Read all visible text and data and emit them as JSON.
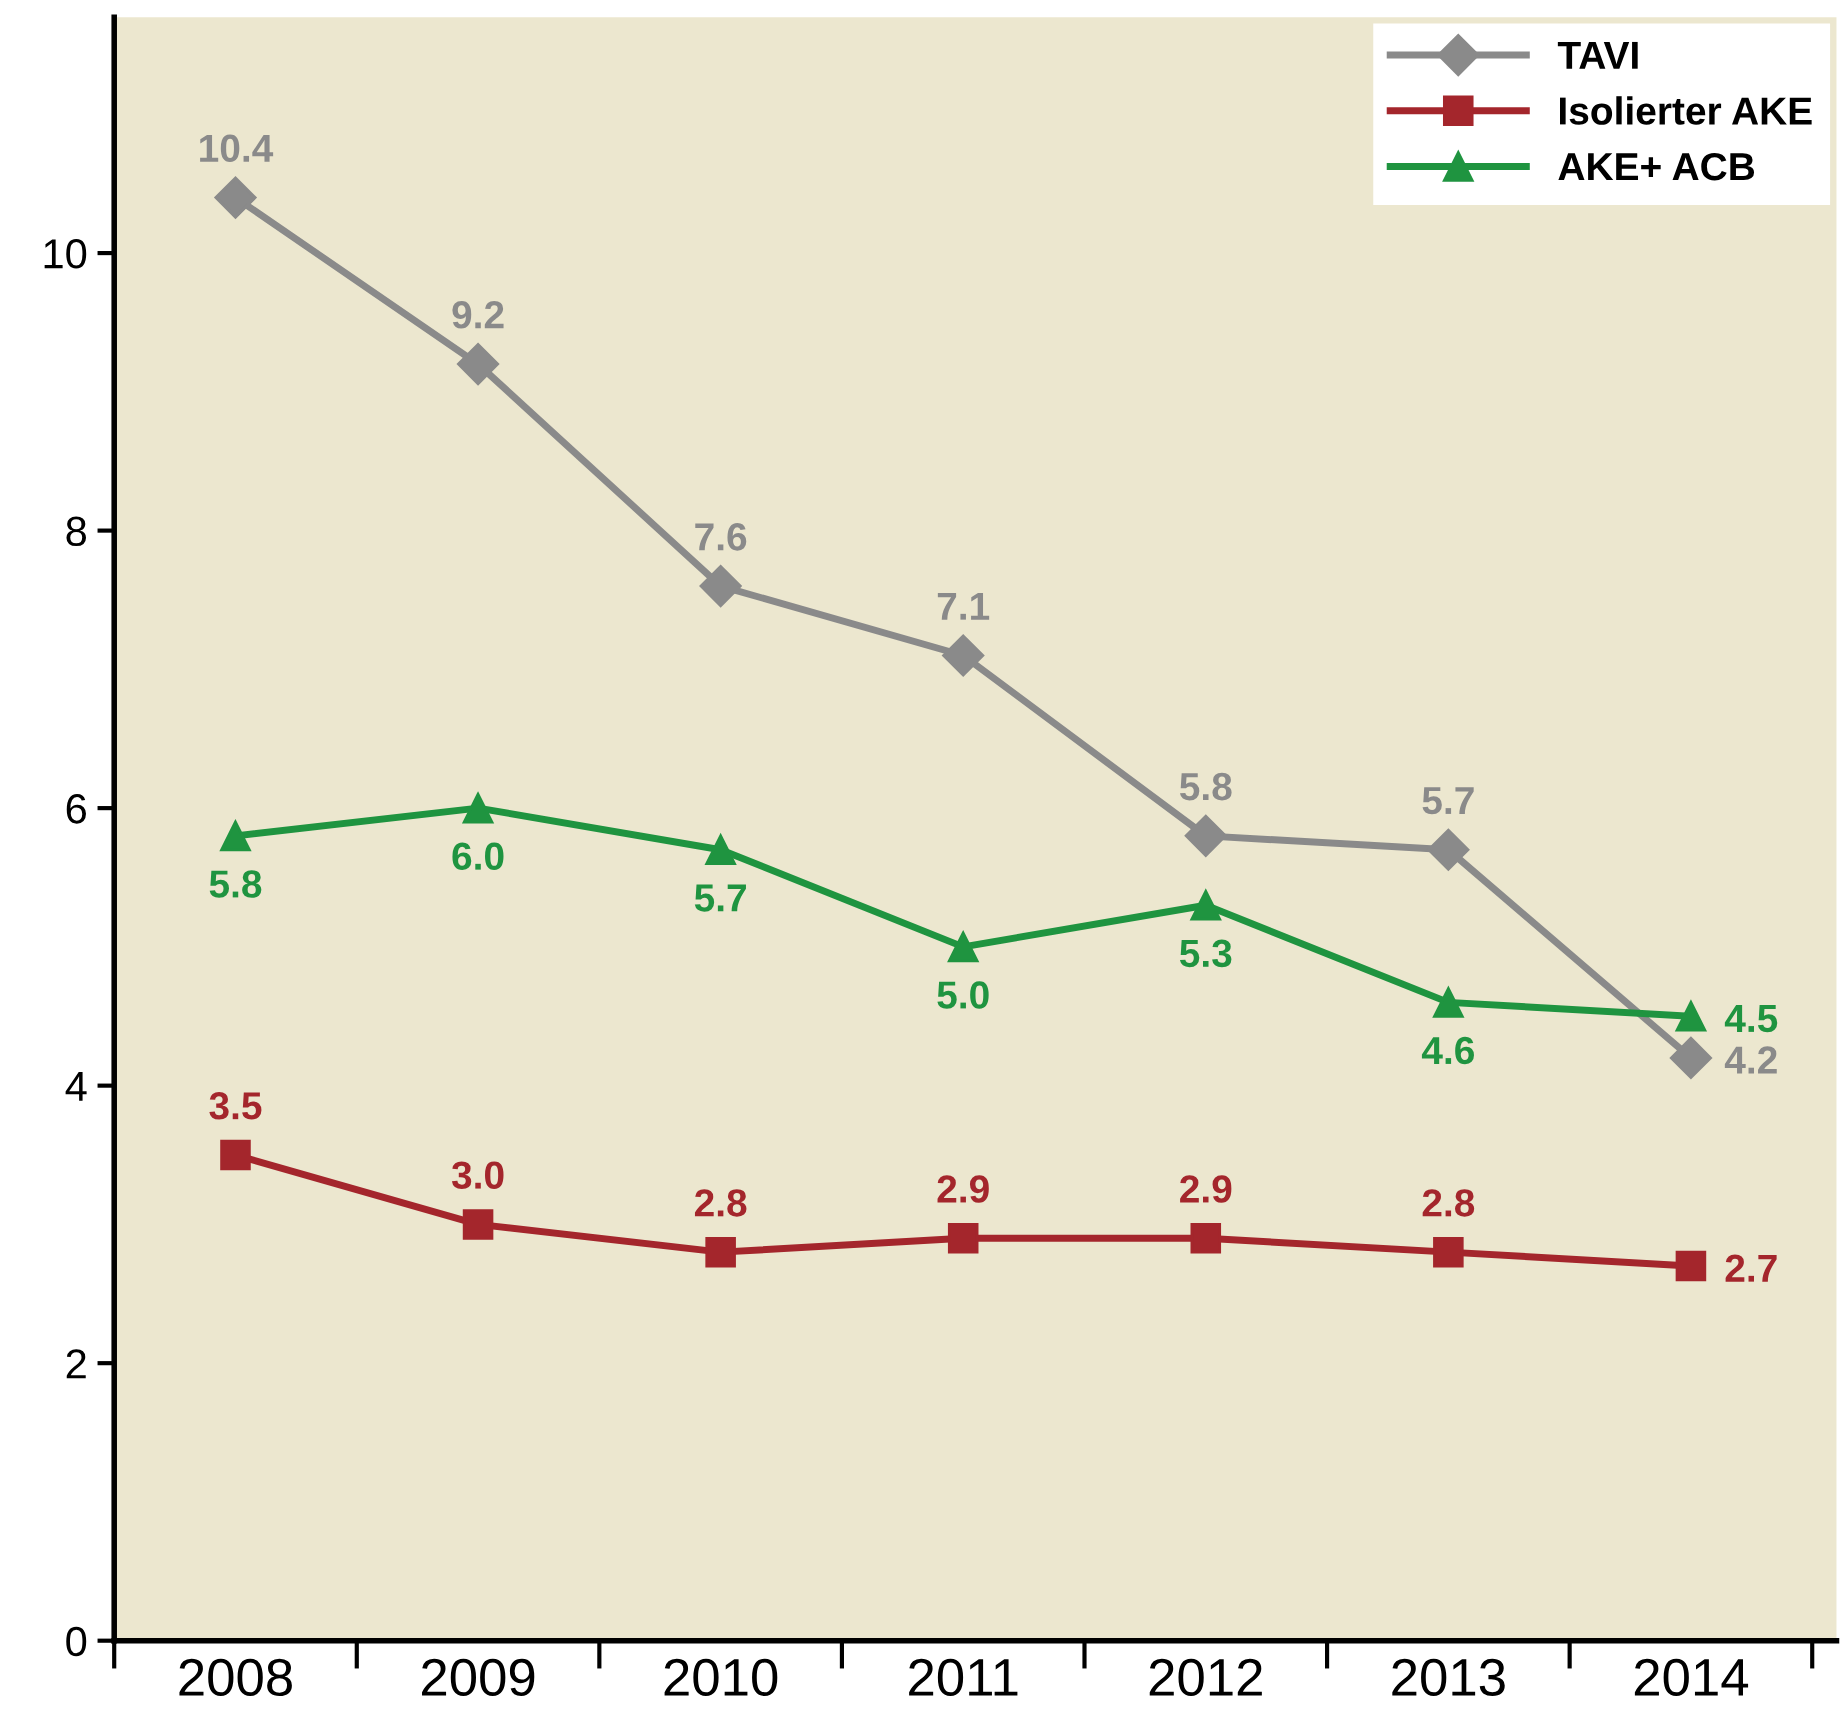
{
  "chart_data": {
    "type": "line",
    "categories": [
      "2008",
      "2009",
      "2010",
      "2011",
      "2012",
      "2013",
      "2014"
    ],
    "series": [
      {
        "name": "TAVI",
        "color": "#8a8a8a",
        "marker": "diamond",
        "values": [
          10.4,
          9.2,
          7.6,
          7.1,
          5.8,
          5.7,
          4.2
        ],
        "value_labels": [
          "10.4",
          "9.2",
          "7.6",
          "7.1",
          "5.8",
          "5.7",
          "4.2"
        ]
      },
      {
        "name": "Isolierter AKE",
        "color": "#a4262c",
        "marker": "square",
        "values": [
          3.5,
          3.0,
          2.8,
          2.9,
          2.9,
          2.8,
          2.7
        ],
        "value_labels": [
          "3.5",
          "3.0",
          "2.8",
          "2.9",
          "2.9",
          "2.8",
          "2.7"
        ]
      },
      {
        "name": "AKE+ ACB",
        "color": "#1f9440",
        "marker": "triangle",
        "values": [
          5.8,
          6.0,
          5.7,
          5.0,
          5.3,
          4.6,
          4.5
        ],
        "value_labels": [
          "5.8",
          "6.0",
          "5.7",
          "5.0",
          "5.3",
          "4.6",
          "4.5"
        ]
      }
    ],
    "ylim": [
      0,
      11.7
    ],
    "yticks": [
      0,
      2,
      4,
      6,
      8,
      10
    ],
    "grid": false,
    "legend": "top right",
    "line_style": "solid"
  }
}
